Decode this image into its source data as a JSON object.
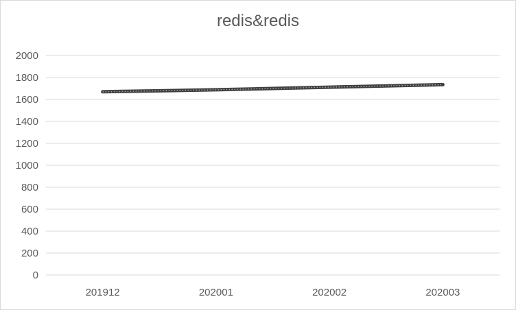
{
  "chart_data": {
    "type": "line",
    "title": "redis&redis",
    "xlabel": "",
    "ylabel": "",
    "categories": [
      "201912",
      "202001",
      "202002",
      "202003"
    ],
    "series": [
      {
        "values": [
          1670,
          1688,
          1712,
          1735
        ]
      }
    ],
    "ylim": [
      0,
      2000
    ],
    "yticks": [
      0,
      200,
      400,
      600,
      800,
      1000,
      1200,
      1400,
      1600,
      1800,
      2000
    ],
    "grid": true,
    "legend": "none",
    "colors": {
      "line": "#404040",
      "line_dots": "#a6a6a6",
      "grid": "#d9d9d9",
      "text": "#595959"
    }
  }
}
